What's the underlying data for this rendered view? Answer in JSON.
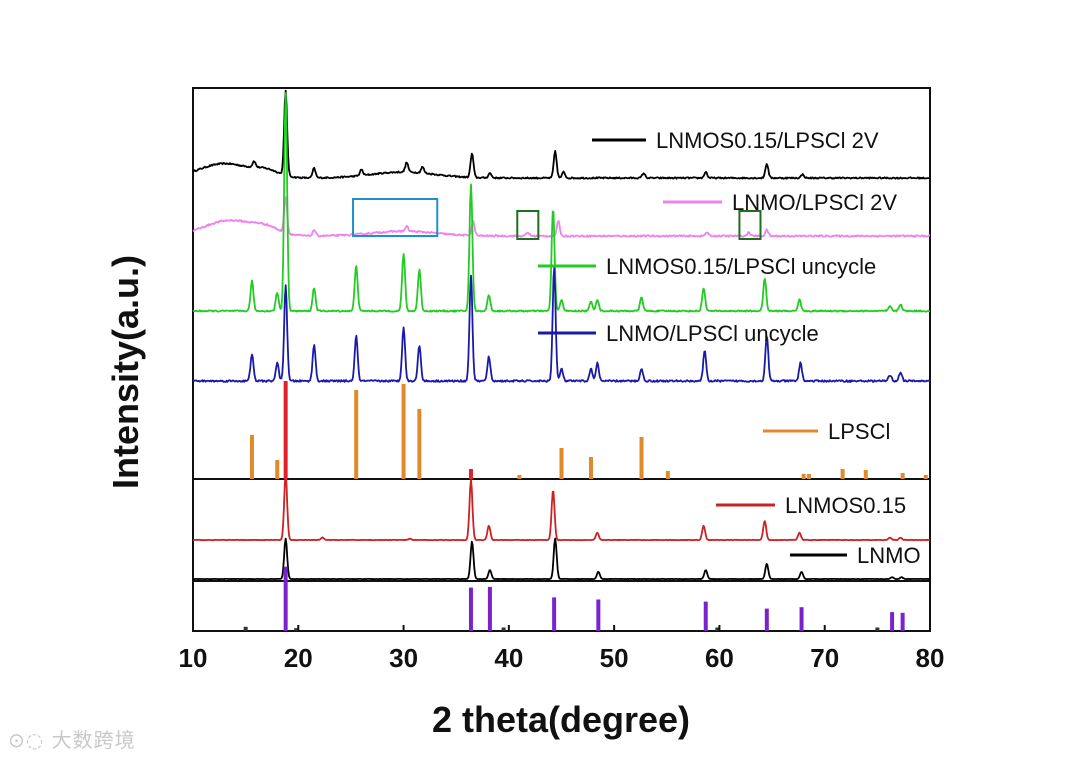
{
  "chart_data": {
    "type": "line",
    "title": "",
    "xlabel": "2 theta(degree)",
    "ylabel": "Intensity(a.u.)",
    "xlim": [
      10,
      80
    ],
    "xticks": [
      10,
      20,
      30,
      40,
      50,
      60,
      70,
      80
    ],
    "grid": false,
    "panels": [
      "top",
      "middle",
      "bottom"
    ],
    "series": [
      {
        "name": "LNMOS0.15/LPSCl 2V",
        "panel": "top",
        "color": "#000000",
        "baseline": 0.78,
        "noise": 0.012,
        "humps": [
          [
            13,
            0.12,
            2.4
          ],
          [
            17,
            0.05,
            1.2
          ],
          [
            30,
            0.05,
            3.0
          ]
        ],
        "peaks": [
          [
            15.8,
            0.05
          ],
          [
            18.8,
            0.7
          ],
          [
            21.5,
            0.08
          ],
          [
            26.0,
            0.05
          ],
          [
            30.3,
            0.08
          ],
          [
            31.8,
            0.05
          ],
          [
            36.5,
            0.2
          ],
          [
            38.2,
            0.04
          ],
          [
            44.4,
            0.22
          ],
          [
            45.2,
            0.05
          ],
          [
            52.8,
            0.04
          ],
          [
            58.7,
            0.05
          ],
          [
            64.5,
            0.12
          ],
          [
            67.9,
            0.03
          ]
        ]
      },
      {
        "name": "LNMO/LPSCl 2V",
        "panel": "top",
        "color": "#ee82ee",
        "baseline": 0.5,
        "noise": 0.014,
        "humps": [
          [
            13.5,
            0.13,
            2.4
          ],
          [
            17,
            0.05,
            1.2
          ],
          [
            30,
            0.04,
            3.0
          ]
        ],
        "peaks": [
          [
            18.8,
            0.3
          ],
          [
            21.5,
            0.05
          ],
          [
            30.3,
            0.04
          ],
          [
            36.6,
            0.12
          ],
          [
            41.8,
            0.03
          ],
          [
            44.7,
            0.12
          ],
          [
            58.8,
            0.03
          ],
          [
            62.8,
            0.03
          ],
          [
            64.5,
            0.05
          ]
        ]
      },
      {
        "name": "LNMOS0.15/LPSCl uncycle",
        "panel": "top",
        "color": "#22cc22",
        "baseline": 0.22,
        "noise": 0.006,
        "humps": [],
        "peaks": [
          [
            15.6,
            0.13
          ],
          [
            18.0,
            0.08
          ],
          [
            18.8,
            0.95
          ],
          [
            21.5,
            0.1
          ],
          [
            25.5,
            0.2
          ],
          [
            30.0,
            0.25
          ],
          [
            31.5,
            0.18
          ],
          [
            36.4,
            0.55
          ],
          [
            38.1,
            0.07
          ],
          [
            44.2,
            0.45
          ],
          [
            45.0,
            0.05
          ],
          [
            47.8,
            0.04
          ],
          [
            48.4,
            0.05
          ],
          [
            52.6,
            0.06
          ],
          [
            58.5,
            0.1
          ],
          [
            64.3,
            0.14
          ],
          [
            67.6,
            0.05
          ],
          [
            76.2,
            0.02
          ],
          [
            77.2,
            0.03
          ]
        ]
      },
      {
        "name": "LNMO/LPSCl uncycle",
        "panel": "top",
        "color": "#1a1aaa",
        "baseline": 0.0,
        "noise": 0.006,
        "humps": [],
        "peaks": [
          [
            15.6,
            0.09
          ],
          [
            18.0,
            0.06
          ],
          [
            18.8,
            0.32
          ],
          [
            21.5,
            0.12
          ],
          [
            25.5,
            0.15
          ],
          [
            30.0,
            0.18
          ],
          [
            31.5,
            0.12
          ],
          [
            36.4,
            0.35
          ],
          [
            38.1,
            0.08
          ],
          [
            44.3,
            0.38
          ],
          [
            45.0,
            0.04
          ],
          [
            47.8,
            0.04
          ],
          [
            48.4,
            0.06
          ],
          [
            52.6,
            0.04
          ],
          [
            58.6,
            0.1
          ],
          [
            64.5,
            0.15
          ],
          [
            67.7,
            0.06
          ],
          [
            76.2,
            0.02
          ],
          [
            77.2,
            0.03
          ]
        ]
      },
      {
        "name": "LNMOS0.15",
        "panel": "bottom",
        "color": "#cc2222",
        "baseline": 0.45,
        "noise": 0.004,
        "humps": [],
        "peaks": [
          [
            18.8,
            0.55
          ],
          [
            22.3,
            0.02
          ],
          [
            30.6,
            0.01
          ],
          [
            36.4,
            0.5
          ],
          [
            38.1,
            0.12
          ],
          [
            44.2,
            0.42
          ],
          [
            48.4,
            0.06
          ],
          [
            58.5,
            0.12
          ],
          [
            64.3,
            0.16
          ],
          [
            67.6,
            0.06
          ],
          [
            76.2,
            0.02
          ],
          [
            77.2,
            0.02
          ]
        ]
      },
      {
        "name": "LNMO",
        "panel": "bottom",
        "color": "#000000",
        "baseline": 0.0,
        "noise": 0.003,
        "humps": [],
        "peaks": [
          [
            18.8,
            0.45
          ],
          [
            36.5,
            0.42
          ],
          [
            38.2,
            0.1
          ],
          [
            44.4,
            0.45
          ],
          [
            48.5,
            0.08
          ],
          [
            58.7,
            0.1
          ],
          [
            64.5,
            0.17
          ],
          [
            67.8,
            0.08
          ],
          [
            76.4,
            0.02
          ],
          [
            77.3,
            0.02
          ]
        ]
      }
    ],
    "reference": [
      {
        "name": "LPSCl",
        "panel": "middle",
        "color": "#e08a2a",
        "sticks": [
          [
            15.6,
            0.44
          ],
          [
            18.0,
            0.19
          ],
          [
            25.5,
            0.89
          ],
          [
            30.0,
            0.95
          ],
          [
            31.5,
            0.7
          ],
          [
            41.0,
            0.04
          ],
          [
            45.0,
            0.31
          ],
          [
            47.8,
            0.22
          ],
          [
            52.6,
            0.42
          ],
          [
            55.1,
            0.08
          ],
          [
            68.0,
            0.05
          ],
          [
            68.5,
            0.05
          ],
          [
            71.7,
            0.1
          ],
          [
            73.9,
            0.09
          ],
          [
            77.4,
            0.06
          ],
          [
            79.6,
            0.04
          ]
        ]
      },
      {
        "name": "",
        "panel": "middle",
        "color": "#e0202a",
        "sticks": [
          [
            18.8,
            0.98
          ],
          [
            36.4,
            0.1
          ]
        ]
      },
      {
        "name": "",
        "panel": "bottom-ref",
        "color": "#7a22cc",
        "sticks": [
          [
            18.8,
            0.92
          ],
          [
            36.4,
            0.62
          ],
          [
            38.2,
            0.63
          ],
          [
            44.3,
            0.48
          ],
          [
            48.5,
            0.45
          ],
          [
            58.7,
            0.42
          ],
          [
            64.5,
            0.32
          ],
          [
            67.8,
            0.34
          ],
          [
            76.4,
            0.27
          ],
          [
            77.4,
            0.26
          ]
        ]
      },
      {
        "name": "",
        "panel": "bottom-ref",
        "color": "#333333",
        "sticks": [
          [
            15.0,
            0.06
          ],
          [
            19.8,
            0.04
          ],
          [
            39.5,
            0.05
          ],
          [
            59.8,
            0.05
          ],
          [
            75.0,
            0.05
          ]
        ]
      }
    ],
    "annotations": [
      {
        "shape": "rect",
        "color": "#1e90c8",
        "x": [
          25.2,
          33.2
        ],
        "series": "LNMO/LPSCl 2V"
      },
      {
        "shape": "rect",
        "color": "#1e6e1e",
        "x": [
          40.8,
          42.8
        ],
        "series": "LNMO/LPSCl 2V"
      },
      {
        "shape": "rect",
        "color": "#1e6e1e",
        "x": [
          61.9,
          63.9
        ],
        "series": "LNMO/LPSCl 2V"
      }
    ],
    "legend": [
      {
        "label": "LNMOS0.15/LPSCl 2V",
        "color": "#000000"
      },
      {
        "label": "LNMO/LPSCl 2V",
        "color": "#ee82ee"
      },
      {
        "label": "LNMOS0.15/LPSCl uncycle",
        "color": "#22cc22"
      },
      {
        "label": "LNMO/LPSCl uncycle",
        "color": "#1a1aaa"
      },
      {
        "label": "LPSCl",
        "color": "#e08a2a"
      },
      {
        "label": "LNMOS0.15",
        "color": "#cc2222"
      },
      {
        "label": "LNMO",
        "color": "#000000"
      }
    ],
    "legend_placement": "right, beside each trace"
  },
  "watermark": "大数跨境"
}
